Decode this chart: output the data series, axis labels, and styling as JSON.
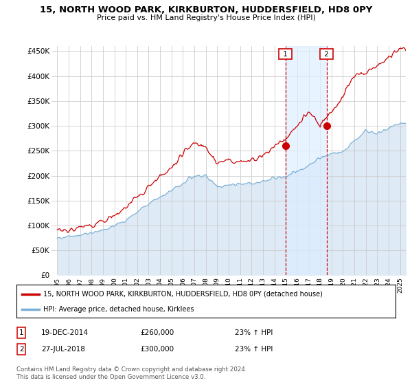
{
  "title": "15, NORTH WOOD PARK, KIRKBURTON, HUDDERSFIELD, HD8 0PY",
  "subtitle": "Price paid vs. HM Land Registry's House Price Index (HPI)",
  "legend_line1": "15, NORTH WOOD PARK, KIRKBURTON, HUDDERSFIELD, HD8 0PY (detached house)",
  "legend_line2": "HPI: Average price, detached house, Kirklees",
  "footnote": "Contains HM Land Registry data © Crown copyright and database right 2024.\nThis data is licensed under the Open Government Licence v3.0.",
  "transaction1_label": "1",
  "transaction1_date": "19-DEC-2014",
  "transaction1_price": "£260,000",
  "transaction1_hpi": "23% ↑ HPI",
  "transaction2_label": "2",
  "transaction2_date": "27-JUL-2018",
  "transaction2_price": "£300,000",
  "transaction2_hpi": "23% ↑ HPI",
  "ylim": [
    0,
    460000
  ],
  "yticks": [
    0,
    50000,
    100000,
    150000,
    200000,
    250000,
    300000,
    350000,
    400000,
    450000
  ],
  "ytick_labels": [
    "£0",
    "£50K",
    "£100K",
    "£150K",
    "£200K",
    "£250K",
    "£300K",
    "£350K",
    "£400K",
    "£450K"
  ],
  "line_color_red": "#cc0000",
  "line_color_blue": "#7aafd4",
  "fill_color_blue": "#deeaf5",
  "marker_color_red": "#cc0000",
  "background_color": "#ffffff",
  "grid_color": "#cccccc",
  "transaction1_x": 2014.96,
  "transaction1_y": 260000,
  "transaction2_x": 2018.57,
  "transaction2_y": 300000,
  "xlim_start": 1994.5,
  "xlim_end": 2025.5,
  "xtick_years": [
    1995,
    1996,
    1997,
    1998,
    1999,
    2000,
    2001,
    2002,
    2003,
    2004,
    2005,
    2006,
    2007,
    2008,
    2009,
    2010,
    2011,
    2012,
    2013,
    2014,
    2015,
    2016,
    2017,
    2018,
    2019,
    2020,
    2021,
    2022,
    2023,
    2024,
    2025
  ],
  "seed": 42
}
